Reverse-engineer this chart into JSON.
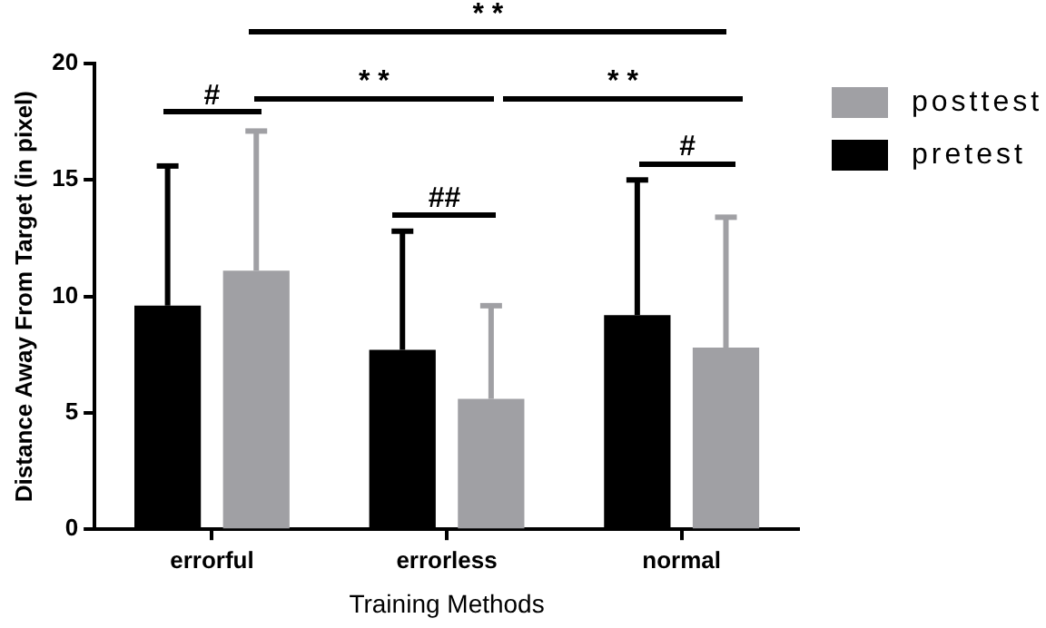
{
  "chart_data": {
    "type": "bar",
    "xlabel": "Training Methods",
    "ylabel": "Distance Away From Target (in pixel)",
    "categories": [
      "errorful",
      "errorless",
      "normal"
    ],
    "series": [
      {
        "name": "pretest",
        "color": "#000000",
        "values": [
          9.6,
          7.7,
          9.2
        ],
        "errors": [
          [
            9.6,
            15.6
          ],
          [
            7.7,
            12.8
          ],
          [
            9.2,
            15.0
          ]
        ]
      },
      {
        "name": "posttest",
        "color": "#a0a0a4",
        "values": [
          11.1,
          5.6,
          7.8
        ],
        "errors": [
          [
            11.1,
            17.1
          ],
          [
            5.6,
            9.6
          ],
          [
            7.8,
            13.4
          ]
        ]
      }
    ],
    "ylim": [
      0,
      20
    ],
    "yticks": [
      0,
      5,
      10,
      15,
      20
    ],
    "grid": false,
    "legend": "top right",
    "annotations": [
      "#",
      "* *",
      "* *",
      "* *",
      "##",
      "#"
    ]
  }
}
